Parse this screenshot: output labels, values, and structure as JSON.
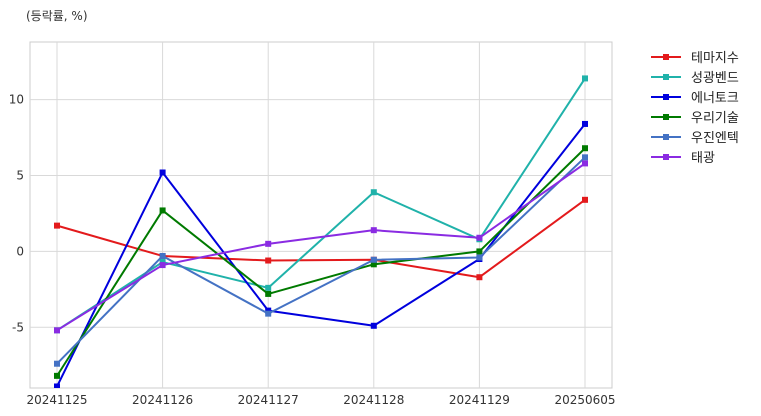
{
  "chart_data": {
    "type": "line",
    "title": "",
    "ylabel": "(등락률, %)",
    "xlabel": "",
    "categories": [
      "20241125",
      "20241126",
      "20241127",
      "20241128",
      "20241129",
      "20250605"
    ],
    "ylim": [
      -9,
      13.8
    ],
    "yticks": [
      -5,
      0,
      5,
      10
    ],
    "grid": true,
    "legend_position": "outside-right",
    "series": [
      {
        "name": "테마지수",
        "color": "#e31a1c",
        "values": [
          1.7,
          -0.3,
          -0.6,
          -0.55,
          -1.7,
          3.4
        ]
      },
      {
        "name": "성광벤드",
        "color": "#20b2aa",
        "values": [
          -5.2,
          -0.7,
          -2.4,
          3.9,
          0.8,
          11.4
        ]
      },
      {
        "name": "에너토크",
        "color": "#0000dd",
        "values": [
          -8.9,
          5.2,
          -3.9,
          -4.9,
          -0.5,
          8.4
        ]
      },
      {
        "name": "우리기술",
        "color": "#007a00",
        "values": [
          -8.2,
          2.7,
          -2.8,
          -0.85,
          0.0,
          6.8
        ]
      },
      {
        "name": "우진엔텍",
        "color": "#4472c4",
        "values": [
          -7.4,
          -0.3,
          -4.1,
          -0.55,
          -0.4,
          6.2
        ]
      },
      {
        "name": "태광",
        "color": "#8a2be2",
        "values": [
          -5.2,
          -0.9,
          0.5,
          1.4,
          0.9,
          5.8
        ]
      }
    ]
  }
}
